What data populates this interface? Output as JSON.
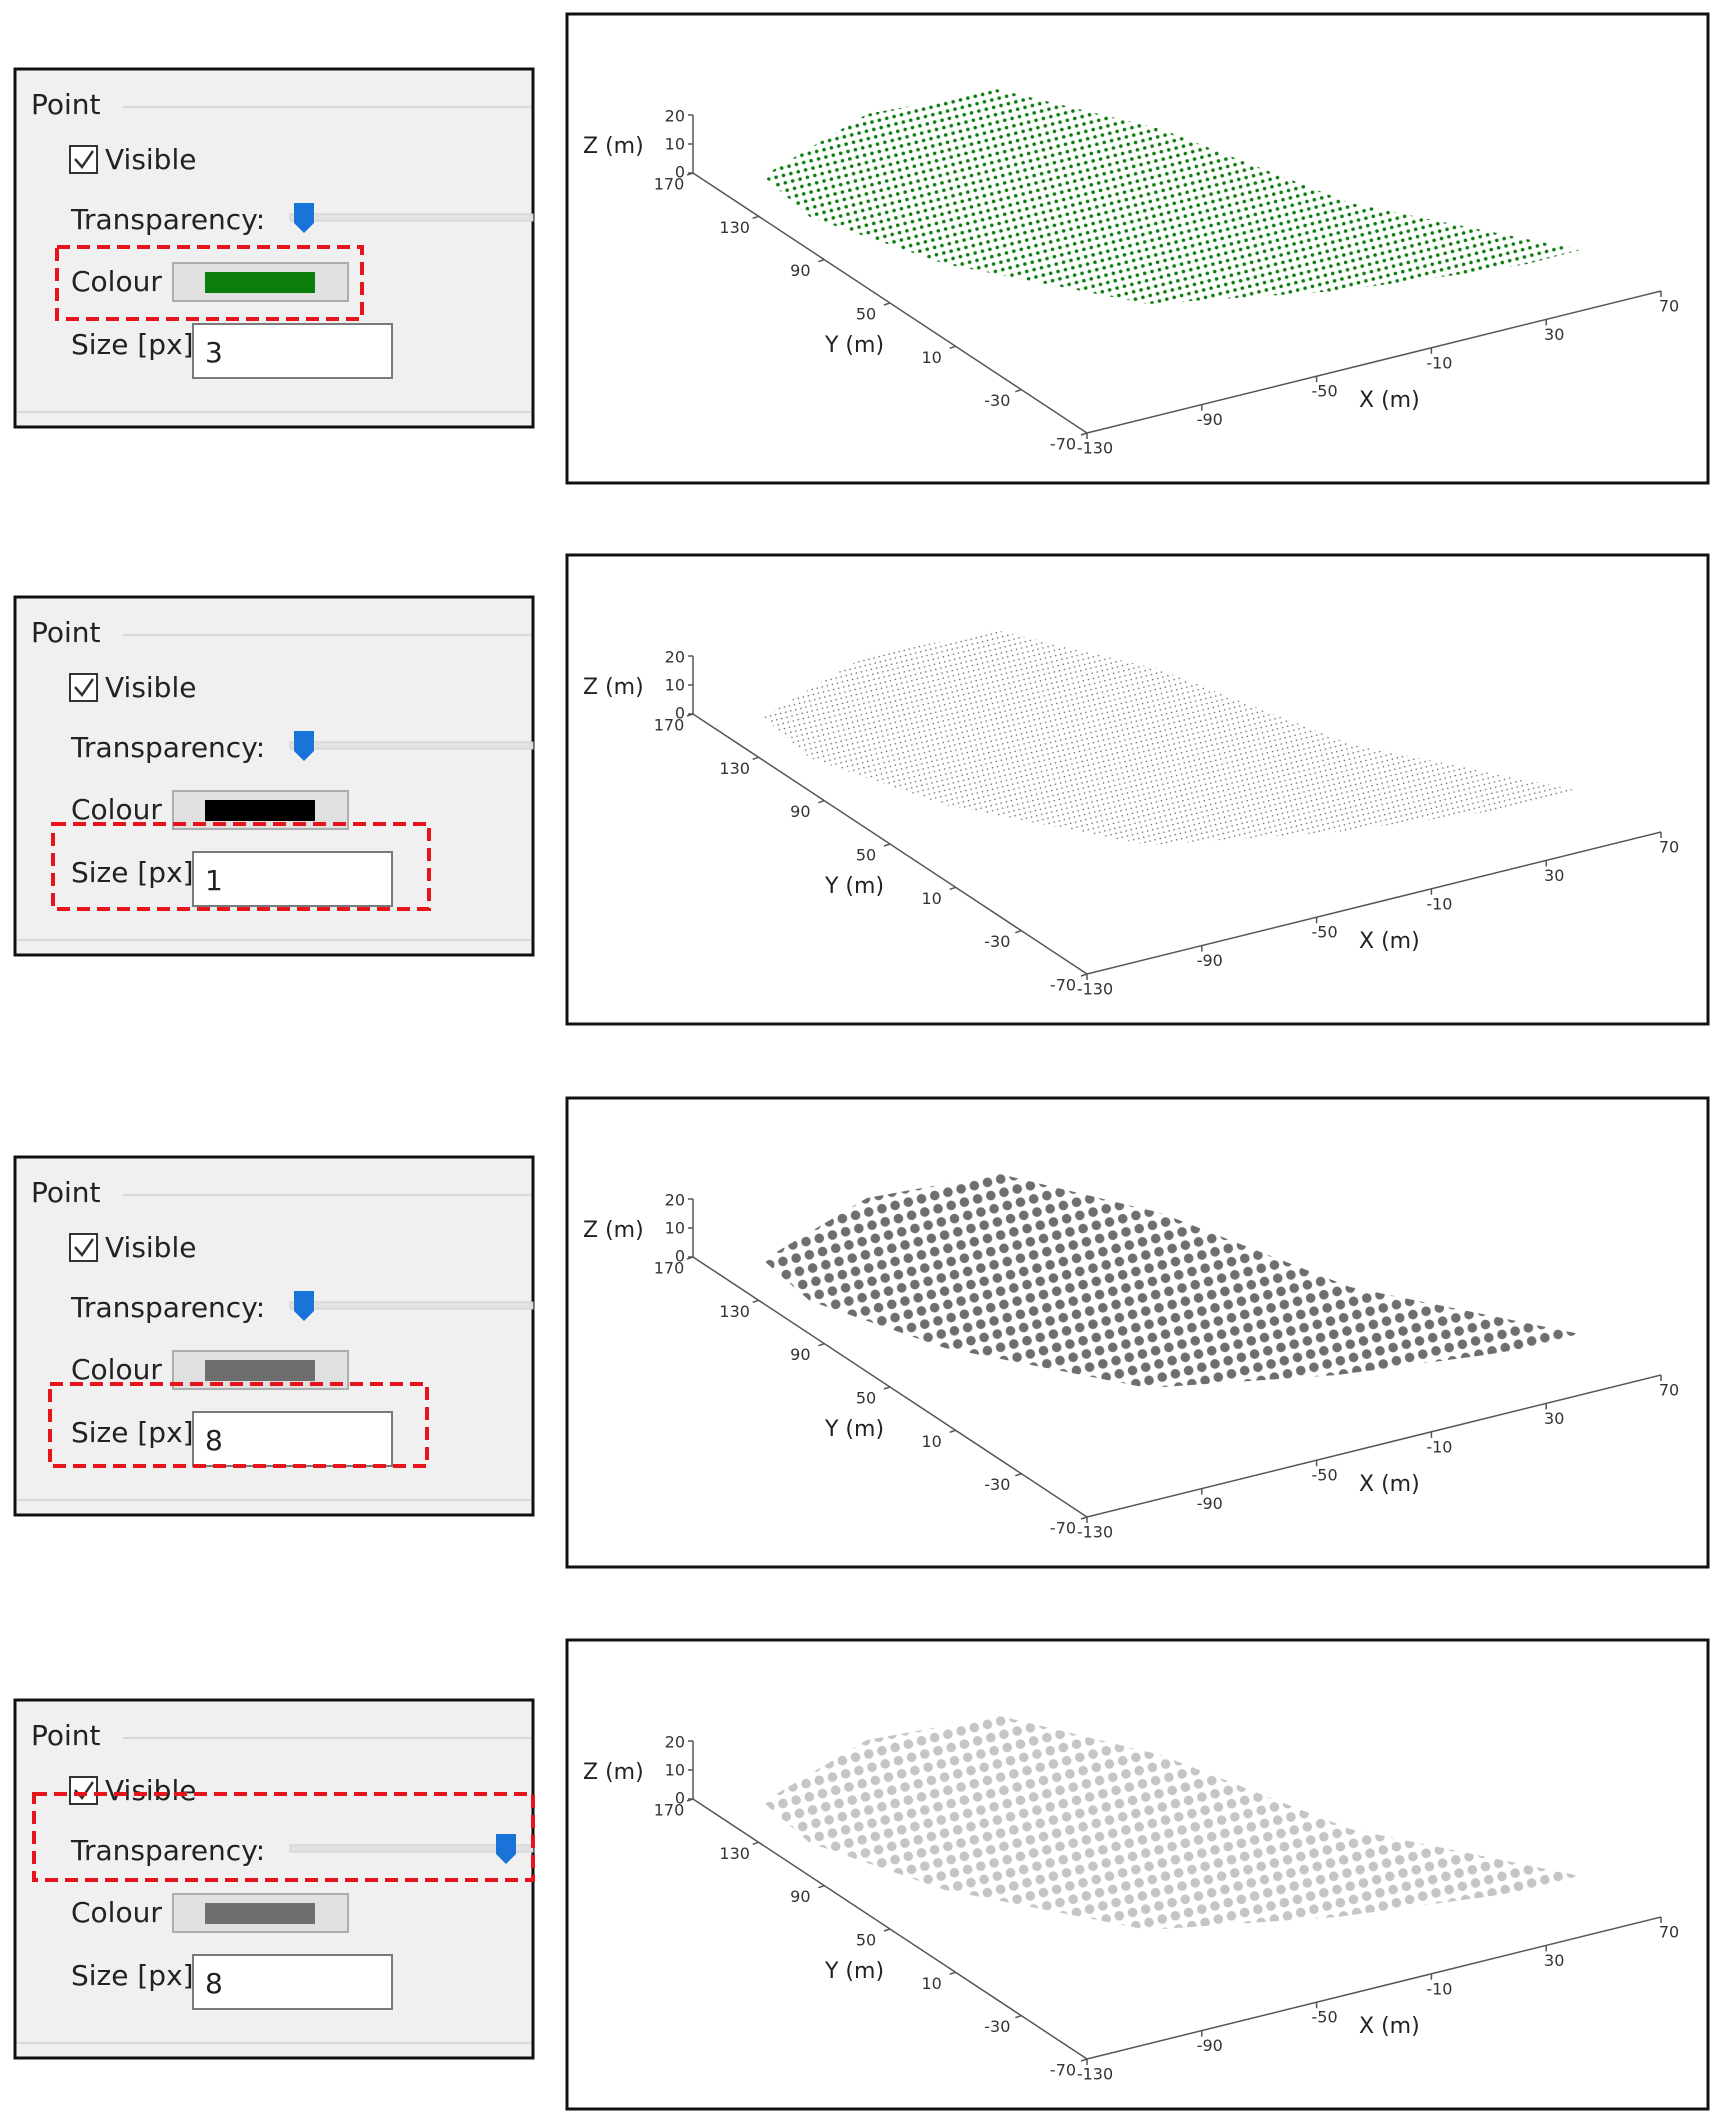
{
  "views": [
    {
      "panel": {
        "title": "Point",
        "visible_label": "Visible",
        "transparency_label": "Transparency:",
        "colour_label": "Colour",
        "colour": "#0b7d0b",
        "size_label": "Size [px]",
        "size": 3
      },
      "plot": {
        "z_label": "Z (m)",
        "y_label": "Y (m)",
        "x_label": "X (m)",
        "z_ticks": [
          20,
          10,
          0
        ],
        "y_ticks": [
          170,
          130,
          90,
          50,
          10,
          -30,
          -70
        ],
        "x_ticks": [
          -130,
          -90,
          -50,
          -10,
          30,
          70
        ]
      }
    },
    {
      "panel": {
        "title": "Point",
        "visible_label": "Visible",
        "transparency_label": "Transparency:",
        "colour_label": "Colour",
        "colour": "#000000",
        "size_label": "Size [px]",
        "size": 1
      },
      "plot": {
        "z_label": "Z (m)",
        "y_label": "Y (m)",
        "x_label": "X (m)",
        "z_ticks": [
          20,
          10,
          0
        ],
        "y_ticks": [
          170,
          130,
          90,
          50,
          10,
          -30,
          -70
        ],
        "x_ticks": [
          -130,
          -90,
          -50,
          -10,
          30,
          70
        ]
      }
    },
    {
      "panel": {
        "title": "Point",
        "visible_label": "Visible",
        "transparency_label": "Transparency:",
        "colour_label": "Colour",
        "colour": "#6e6e6e",
        "size_label": "Size [px]",
        "size": 8
      },
      "plot": {
        "z_label": "Z (m)",
        "y_label": "Y (m)",
        "x_label": "X (m)",
        "z_ticks": [
          20,
          10,
          0
        ],
        "y_ticks": [
          170,
          130,
          90,
          50,
          10,
          -30,
          -70
        ],
        "x_ticks": [
          -130,
          -90,
          -50,
          -10,
          30,
          70
        ]
      }
    },
    {
      "panel": {
        "title": "Point",
        "visible_label": "Visible",
        "transparency_label": "Transparency:",
        "colour_label": "Colour",
        "colour": "#6e6e6e",
        "size_label": "Size [px]",
        "size": 8
      },
      "plot": {
        "z_label": "Z (m)",
        "y_label": "Y (m)",
        "x_label": "X (m)",
        "z_ticks": [
          20,
          10,
          0
        ],
        "y_ticks": [
          170,
          130,
          90,
          50,
          10,
          -30,
          -70
        ],
        "x_ticks": [
          -130,
          -90,
          -50,
          -10,
          30,
          70
        ]
      }
    }
  ]
}
